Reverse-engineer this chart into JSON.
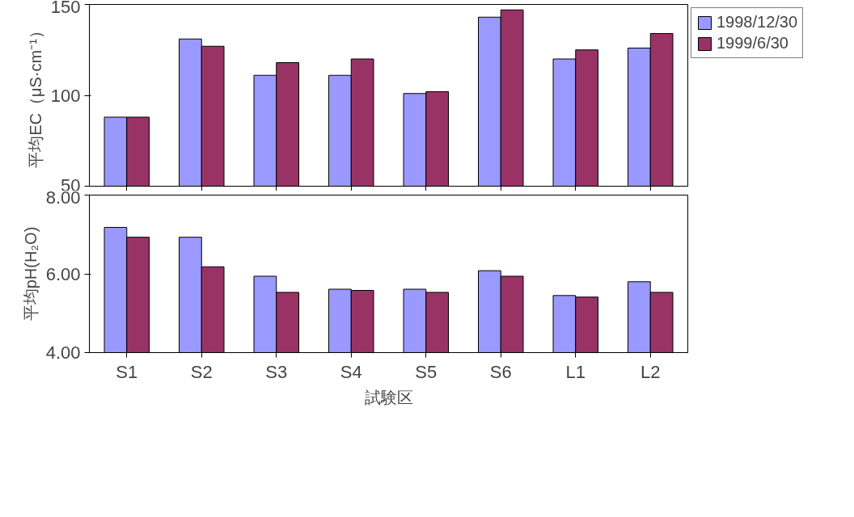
{
  "chart_data": [
    {
      "type": "bar",
      "ylabel": "平均EC（μS·cm⁻¹）",
      "categories": [
        null,
        null,
        null,
        null,
        null,
        null,
        null,
        null
      ],
      "series": [
        {
          "name": "1998/12/30",
          "color": "#9999ff",
          "values": [
            88,
            131,
            111,
            111,
            101,
            143,
            120,
            126
          ]
        },
        {
          "name": "1999/6/30",
          "color": "#993366",
          "values": [
            88,
            127,
            118,
            120,
            102,
            147,
            125,
            134
          ]
        }
      ],
      "ylim": [
        50,
        150
      ],
      "yticks": [
        50,
        100,
        150
      ],
      "grid": false,
      "legend": "right",
      "tick_labels": "y"
    },
    {
      "type": "bar",
      "ylabel": "平均pH(H₂O)",
      "xlabel": "試験区",
      "categories": [
        "S1",
        "S2",
        "S3",
        "S4",
        "S5",
        "S6",
        "L1",
        "L2"
      ],
      "series": [
        {
          "color": "#9999ff",
          "values": [
            7.18,
            6.93,
            5.94,
            5.61,
            5.61,
            6.08,
            5.45,
            5.8
          ]
        },
        {
          "color": "#993366",
          "values": [
            6.93,
            6.18,
            5.53,
            5.58,
            5.53,
            5.94,
            5.41,
            5.53
          ]
        }
      ],
      "ylim": [
        4,
        8
      ],
      "yticks": [
        {
          "value": 4,
          "label": "4.00"
        },
        {
          "value": 6,
          "label": "6.00"
        },
        {
          "value": 8,
          "label": "8.00"
        }
      ],
      "grid": false
    }
  ]
}
